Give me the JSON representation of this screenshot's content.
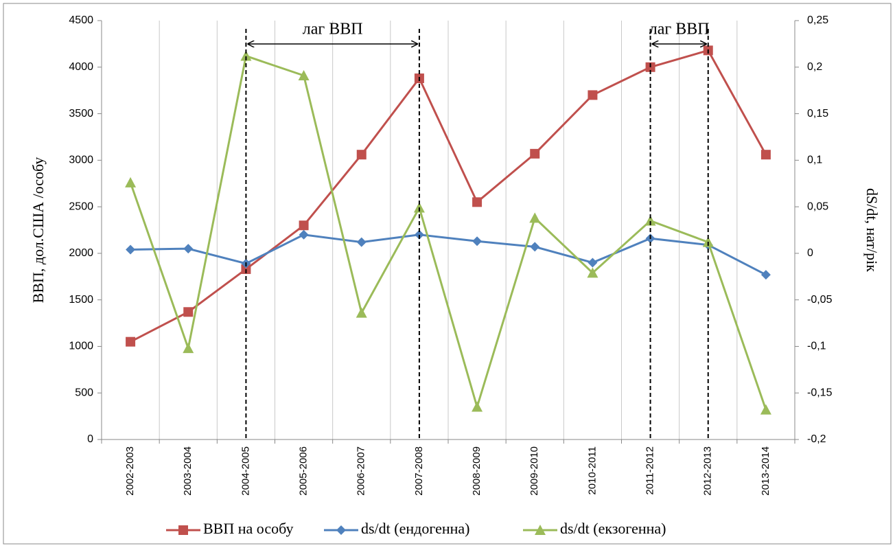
{
  "chart_data": {
    "type": "line",
    "categories": [
      "2002-2003",
      "2003-2004",
      "2004-2005",
      "2005-2006",
      "2006-2007",
      "2007-2008",
      "2008-2009",
      "2009-2010",
      "2010-2011",
      "2011-2012",
      "2012-2013",
      "2013-2014"
    ],
    "series": [
      {
        "name": "ВВП на особу",
        "color": "#c0504d",
        "marker": "square",
        "values": [
          1050,
          1370,
          1830,
          2300,
          3060,
          3880,
          2550,
          3070,
          3700,
          4000,
          4180,
          3060
        ]
      },
      {
        "name": "ds/dt (ендогенна)",
        "color": "#4f81bd",
        "marker": "diamond",
        "axis": "y2",
        "values": [
          0.004,
          0.005,
          -0.011,
          0.02,
          0.012,
          0.02,
          0.013,
          0.007,
          -0.01,
          0.016,
          0.009,
          -0.023
        ]
      },
      {
        "name": "ds/dt (екзогенна)",
        "color": "#9bbb59",
        "marker": "triangle",
        "axis": "y2",
        "values": [
          0.076,
          -0.102,
          0.212,
          0.191,
          -0.064,
          0.049,
          -0.165,
          0.038,
          -0.021,
          0.035,
          0.012,
          -0.168
        ]
      }
    ],
    "ylabel": "ВВП, дол.США /особу",
    "y2label": "dS/dt, нат/рік",
    "ylim": [
      0,
      4500
    ],
    "yticks": [
      0,
      500,
      1000,
      1500,
      2000,
      2500,
      3000,
      3500,
      4000,
      4500
    ],
    "y2lim": [
      -0.2,
      0.25
    ],
    "y2ticks": [
      {
        "value": -0.2,
        "label": "-0,2"
      },
      {
        "value": -0.15,
        "label": "-0,15"
      },
      {
        "value": -0.1,
        "label": "-0,1"
      },
      {
        "value": -0.05,
        "label": "-0,05"
      },
      {
        "value": 0,
        "label": "0"
      },
      {
        "value": 0.05,
        "label": "0,05"
      },
      {
        "value": 0.1,
        "label": "0,1"
      },
      {
        "value": 0.15,
        "label": "0,15"
      },
      {
        "value": 0.2,
        "label": "0,2"
      },
      {
        "value": 0.25,
        "label": "0,25"
      }
    ],
    "grid": "x",
    "legend": "bottom",
    "annotations": [
      {
        "text": "лаг ВВП",
        "from": "2004-2005",
        "to": "2007-2008"
      },
      {
        "text": "лаг ВВП",
        "from": "2011-2012",
        "to": "2012-2013"
      }
    ]
  }
}
